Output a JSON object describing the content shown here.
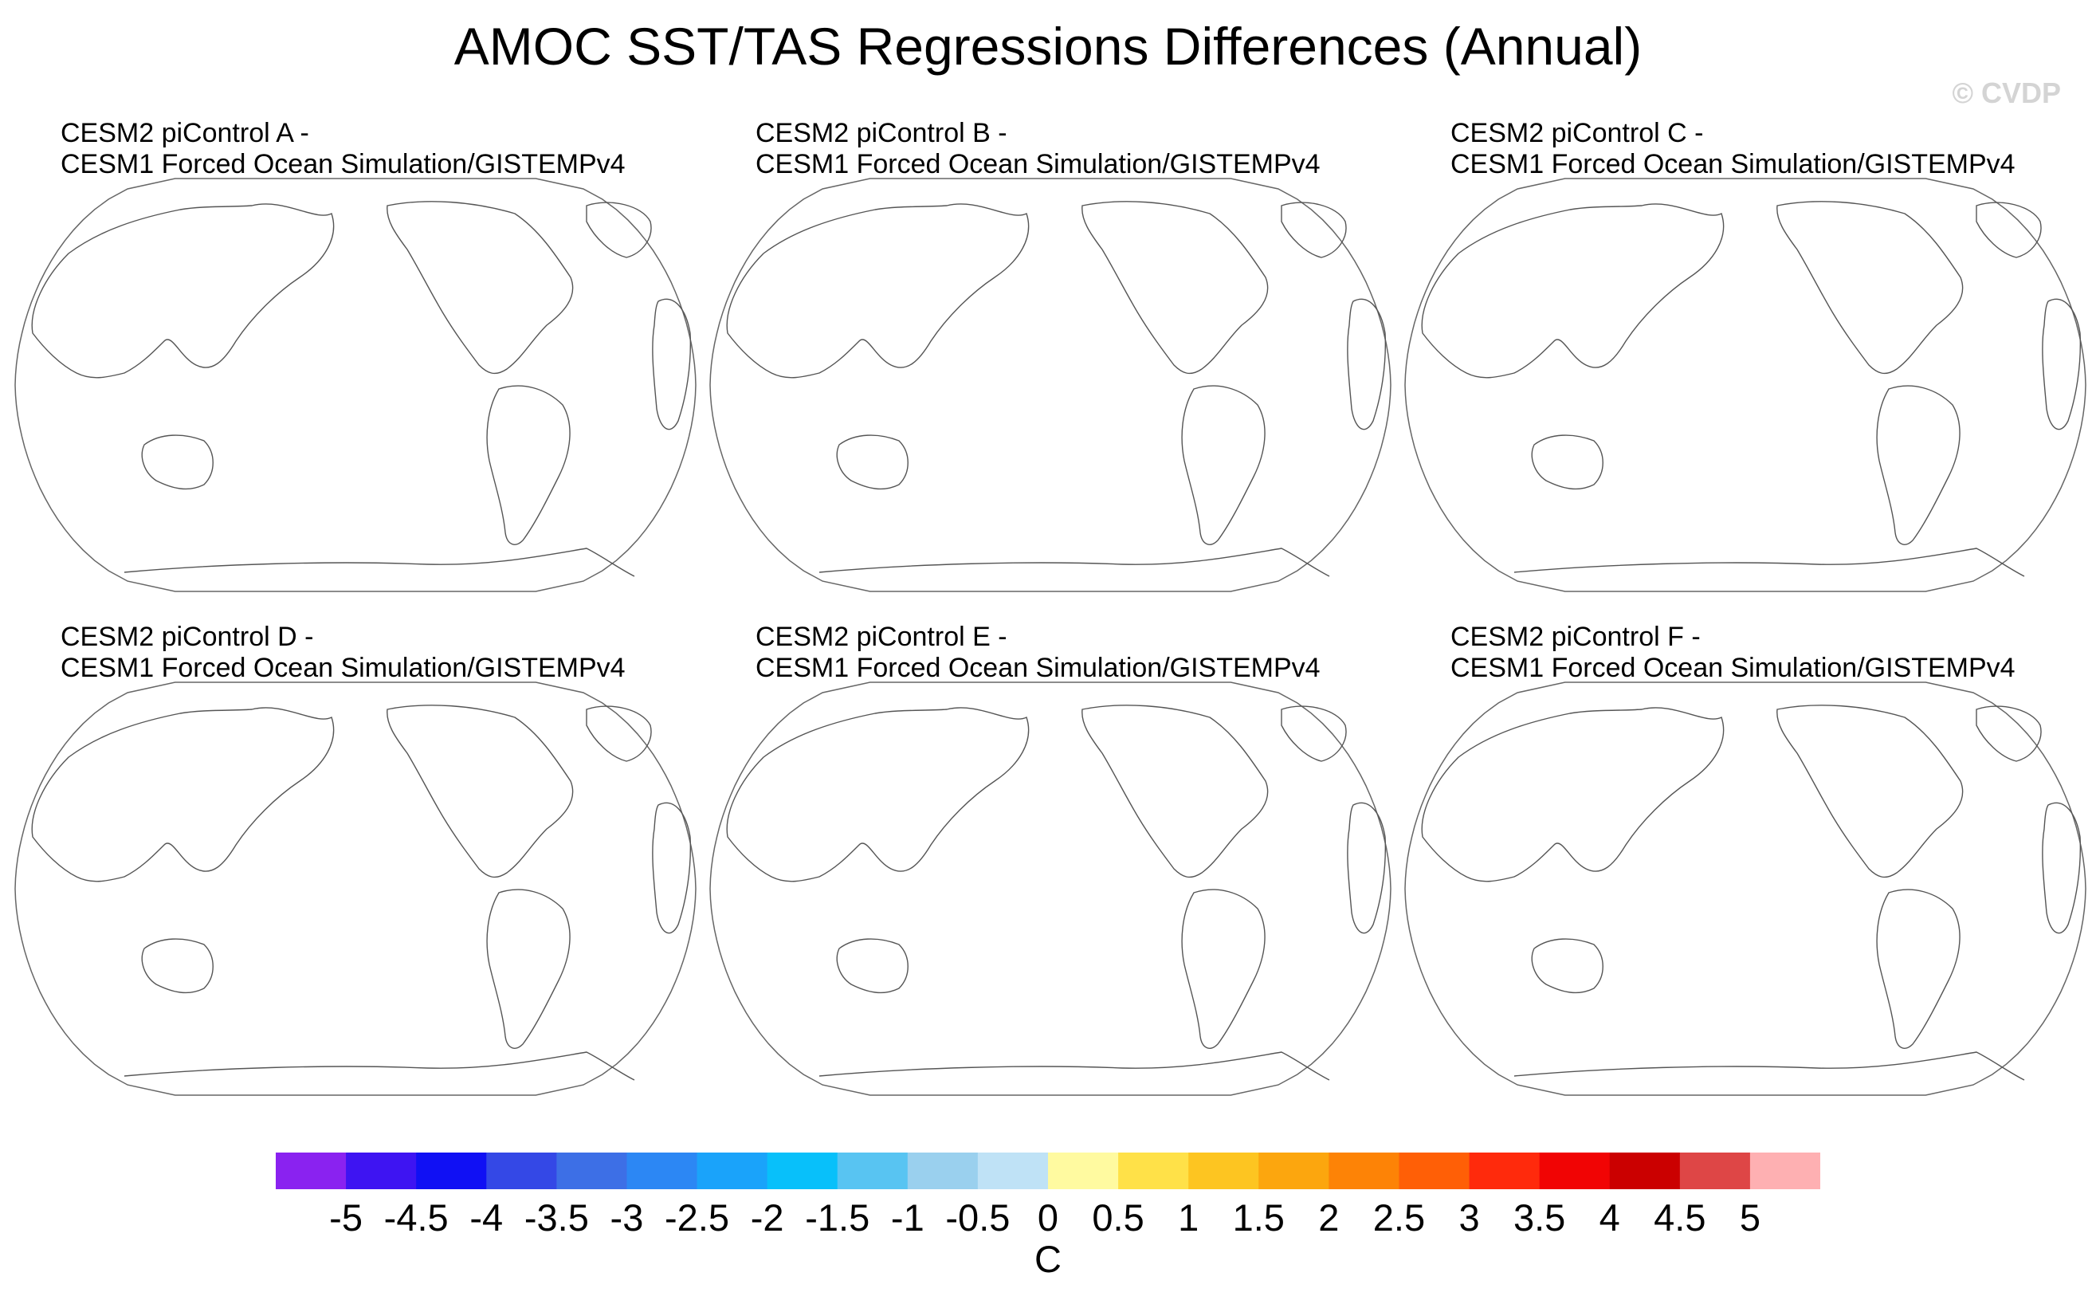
{
  "title": "AMOC SST/TAS Regressions Differences (Annual)",
  "watermark": "© CVDP",
  "panels": [
    {
      "line1": "CESM2 piControl A -",
      "line2": "CESM1 Forced Ocean Simulation/GISTEMPv4"
    },
    {
      "line1": "CESM2 piControl B -",
      "line2": "CESM1 Forced Ocean Simulation/GISTEMPv4"
    },
    {
      "line1": "CESM2 piControl C -",
      "line2": "CESM1 Forced Ocean Simulation/GISTEMPv4"
    },
    {
      "line1": "CESM2 piControl D -",
      "line2": "CESM1 Forced Ocean Simulation/GISTEMPv4"
    },
    {
      "line1": "CESM2 piControl E -",
      "line2": "CESM1 Forced Ocean Simulation/GISTEMPv4"
    },
    {
      "line1": "CESM2 piControl F -",
      "line2": "CESM1 Forced Ocean Simulation/GISTEMPv4"
    }
  ],
  "map": {
    "projection": "robinson",
    "center_longitude": "Pacific-centered",
    "filled_values": "none visible"
  },
  "colorbar": {
    "colors": [
      "#8a22f0",
      "#3e14f2",
      "#1010f4",
      "#3448e6",
      "#3d6fe6",
      "#2c87f4",
      "#1aa3fa",
      "#08c0fa",
      "#58c4f2",
      "#9ad0ee",
      "#bfe2f6",
      "#fffaa0",
      "#ffe148",
      "#fdc521",
      "#fca60e",
      "#fd8306",
      "#ff5f06",
      "#ff2a0c",
      "#f10404",
      "#cb0000",
      "#de4646",
      "#feb0b2"
    ],
    "labels": [
      "-5",
      "-4.5",
      "-4",
      "-3.5",
      "-3",
      "-2.5",
      "-2",
      "-1.5",
      "-1",
      "-0.5",
      "0",
      "0.5",
      "1",
      "1.5",
      "2",
      "2.5",
      "3",
      "3.5",
      "4",
      "4.5",
      "5"
    ],
    "units": "C"
  }
}
